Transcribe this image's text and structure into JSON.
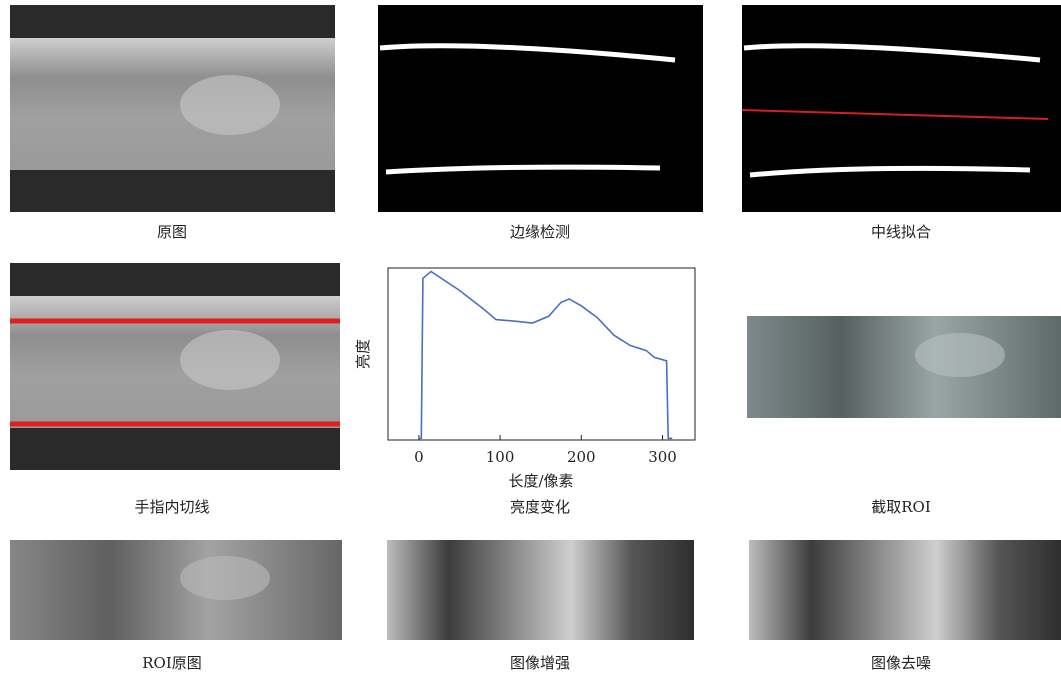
{
  "panels": [
    {
      "caption": "原图"
    },
    {
      "caption": "边缘检测"
    },
    {
      "caption": "中线拟合"
    },
    {
      "caption": "手指内切线"
    },
    {
      "caption": "亮度变化"
    },
    {
      "caption": "截取ROI"
    },
    {
      "caption": "ROI原图"
    },
    {
      "caption": "图像增强"
    },
    {
      "caption": "图像去噪"
    }
  ],
  "chart_data": {
    "type": "line",
    "x_label": "长度/像素",
    "y_label": "亮度",
    "x": [
      0,
      3,
      5,
      15,
      50,
      80,
      95,
      120,
      140,
      160,
      175,
      185,
      200,
      220,
      240,
      260,
      280,
      290,
      305,
      307,
      312
    ],
    "series": [
      {
        "name": "亮度",
        "color": "#4a6fc4",
        "values": [
          0.01,
          0.01,
          0.94,
          0.98,
          0.87,
          0.76,
          0.7,
          0.69,
          0.68,
          0.72,
          0.8,
          0.82,
          0.78,
          0.71,
          0.61,
          0.55,
          0.52,
          0.48,
          0.46,
          0.01,
          0.01
        ]
      }
    ],
    "xlim": [
      -38,
      340
    ],
    "ylim": [
      0,
      1
    ],
    "xticks": [
      0,
      100,
      200,
      300
    ]
  }
}
